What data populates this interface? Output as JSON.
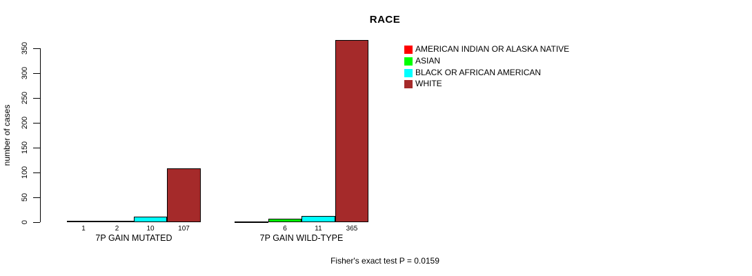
{
  "title": "RACE",
  "ylabel": "number of cases",
  "footer": "Fisher's exact test P = 0.0159",
  "chart_data": {
    "type": "bar",
    "grouped": true,
    "title": "RACE",
    "xlabel": "",
    "ylabel": "number of cases",
    "categories": [
      "7P GAIN MUTATED",
      "7P GAIN WILD-TYPE"
    ],
    "series": [
      {
        "name": "AMERICAN INDIAN OR ALASKA NATIVE",
        "color": "#ff0000",
        "values": [
          1,
          0
        ]
      },
      {
        "name": "ASIAN",
        "color": "#00ff00",
        "values": [
          2,
          6
        ]
      },
      {
        "name": "BLACK OR AFRICAN AMERICAN",
        "color": "#00ffff",
        "values": [
          10,
          11
        ]
      },
      {
        "name": "WHITE",
        "color": "#a52a2a",
        "values": [
          107,
          365
        ]
      }
    ],
    "bar_labels": [
      [
        "1",
        "2",
        "10",
        "107"
      ],
      [
        "",
        "6",
        "11",
        "365"
      ]
    ],
    "ylim": [
      0,
      350
    ],
    "yticks": [
      0,
      50,
      100,
      150,
      200,
      250,
      300,
      350
    ],
    "grid": false,
    "legend_position": "top-right",
    "annotation": "Fisher's exact test P = 0.0159",
    "bar_border_color": "#000000"
  }
}
